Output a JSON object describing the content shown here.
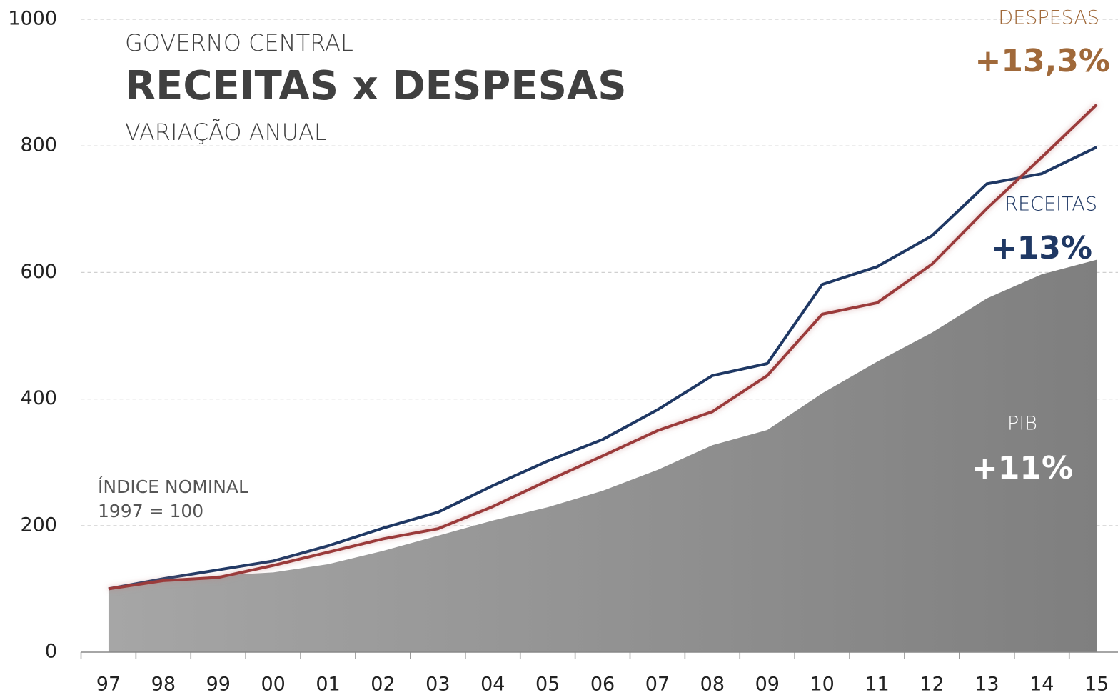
{
  "chart_data": {
    "type": "line",
    "title": "RECEITAS x DESPESAS",
    "supertitle": "GOVERNO CENTRAL",
    "subtitle": "VARIAÇÃO ANUAL",
    "annotations": [
      "ÍNDICE NOMINAL",
      "1997 = 100"
    ],
    "categories": [
      "97",
      "98",
      "99",
      "00",
      "01",
      "02",
      "03",
      "04",
      "05",
      "06",
      "07",
      "08",
      "09",
      "10",
      "11",
      "12",
      "13",
      "14",
      "15"
    ],
    "series": [
      {
        "name": "PIB",
        "kind": "area",
        "color": "#8c8c8c",
        "growth": "+11%",
        "values": [
          100,
          111,
          121,
          126,
          139,
          160,
          184,
          208,
          229,
          255,
          288,
          327,
          351,
          409,
          459,
          505,
          559,
          597,
          620
        ]
      },
      {
        "name": "RECEITAS",
        "kind": "line",
        "color": "#1f3864",
        "growth": "+13%",
        "values": [
          100,
          116,
          130,
          144,
          168,
          196,
          221,
          263,
          302,
          336,
          383,
          437,
          456,
          581,
          609,
          658,
          740,
          756,
          798
        ]
      },
      {
        "name": "DESPESAS",
        "kind": "line",
        "color": "#9b3a3a",
        "label_color": "#a0693a",
        "growth": "+13,3%",
        "values": [
          100,
          113,
          118,
          137,
          158,
          179,
          195,
          230,
          271,
          310,
          350,
          380,
          437,
          534,
          552,
          613,
          701,
          782,
          865
        ]
      }
    ],
    "ylim": [
      0,
      1000
    ],
    "yticks": [
      0,
      200,
      400,
      600,
      800,
      1000
    ],
    "grid": true
  }
}
